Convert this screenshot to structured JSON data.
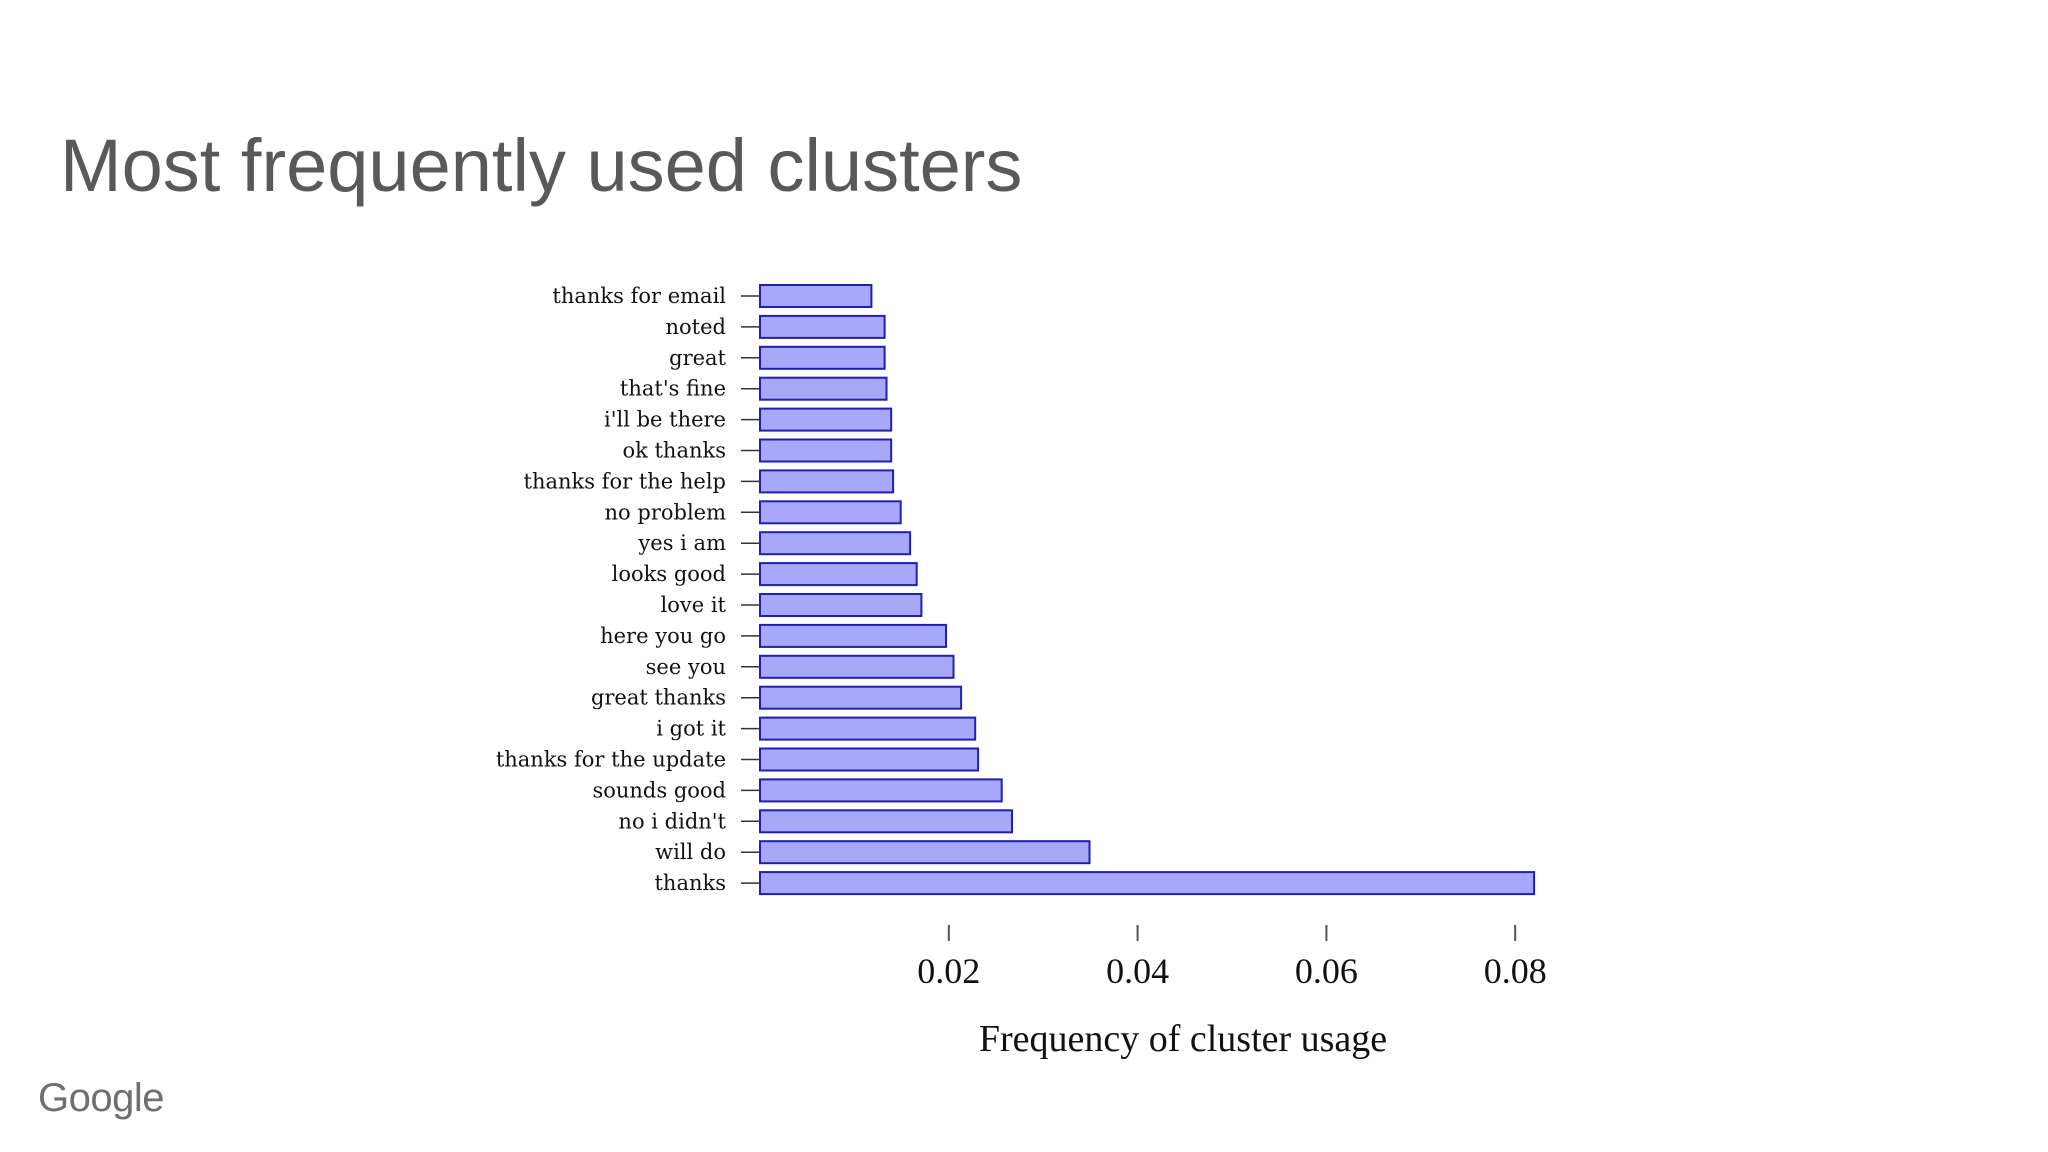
{
  "slide": {
    "title": "Most frequently used clusters",
    "brand": "Google"
  },
  "colors": {
    "bar_fill": "#a8a8fb",
    "bar_stroke": "#1f1fb0",
    "title_text": "#595959",
    "brand_text": "#6f6f6f"
  },
  "chart_data": {
    "type": "bar",
    "orientation": "horizontal",
    "title": "",
    "xlabel": "Frequency of cluster usage",
    "ylabel": "",
    "xlim": [
      0,
      0.0825
    ],
    "xticks": [
      0.02,
      0.04,
      0.06,
      0.08
    ],
    "xtick_labels": [
      "0.02",
      "0.04",
      "0.06",
      "0.08"
    ],
    "grid": false,
    "legend": "none",
    "categories": [
      "thanks for email",
      "noted",
      "great",
      "that's fine",
      "i'll be there",
      "ok thanks",
      "thanks for the help",
      "no problem",
      "yes i am",
      "looks good",
      "love it",
      "here you go",
      "see you",
      "great thanks",
      "i got it",
      "thanks for the update",
      "sounds good",
      "no i didn't",
      "will do",
      "thanks"
    ],
    "values": [
      0.0118,
      0.0132,
      0.0132,
      0.0134,
      0.0139,
      0.0139,
      0.0141,
      0.0149,
      0.0159,
      0.0166,
      0.0171,
      0.0197,
      0.0205,
      0.0213,
      0.0228,
      0.0231,
      0.0256,
      0.0267,
      0.0349,
      0.082
    ]
  }
}
